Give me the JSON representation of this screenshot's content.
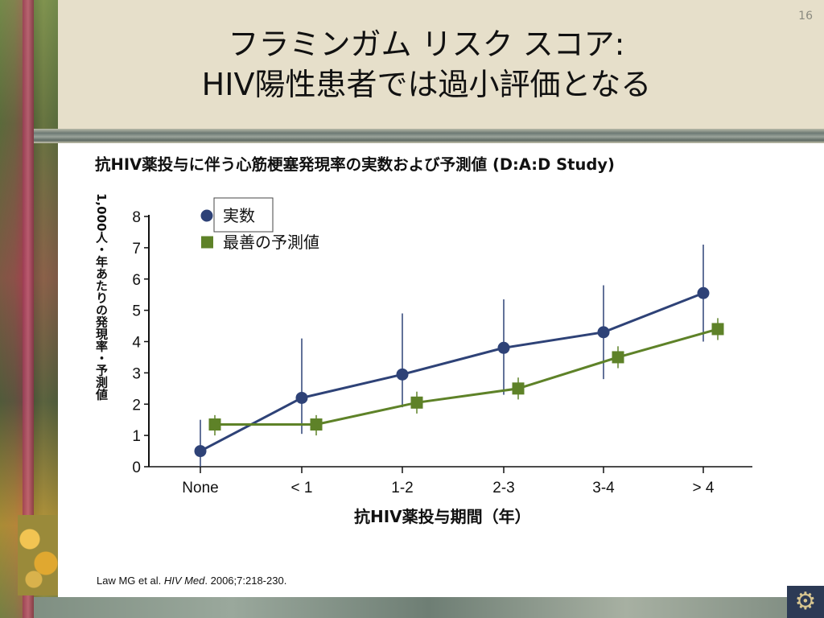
{
  "slide": {
    "number": "16",
    "title_line1": "フラミンガム リスク スコア:",
    "title_line2": "HIV陽性患者では過小評価となる",
    "citation_prefix": "Law MG et al. ",
    "citation_journal": "HIV Med",
    "citation_suffix": ". 2006;7:218-230."
  },
  "chart_data": {
    "type": "line",
    "title": "抗HIV薬投与に伴う心筋梗塞発現率の実数および予測値 (D:A:D Study)",
    "xlabel": "抗HIV薬投与期間（年）",
    "ylabel": "1,000人・年あたりの発現率・予測値",
    "categories": [
      "None",
      "< 1",
      "1-2",
      "2-3",
      "3-4",
      "> 4"
    ],
    "ylim": [
      0,
      8
    ],
    "yticks": [
      "0",
      "1",
      "2",
      "3",
      "4",
      "5",
      "6",
      "7",
      "8"
    ],
    "legend_position": "top-left",
    "series": [
      {
        "name": "実数",
        "marker": "circle",
        "color": "#2e4277",
        "values": [
          0.5,
          2.2,
          2.95,
          3.8,
          4.3,
          5.55
        ],
        "err_low": [
          0.0,
          1.05,
          1.9,
          2.3,
          2.8,
          4.0
        ],
        "err_high": [
          1.5,
          4.1,
          4.9,
          5.35,
          5.8,
          7.1
        ]
      },
      {
        "name": "最善の予測値",
        "marker": "square",
        "color": "#5e8228",
        "values": [
          1.35,
          1.35,
          2.05,
          2.5,
          3.5,
          4.4
        ],
        "err_low": [
          1.0,
          1.0,
          1.7,
          2.15,
          3.15,
          4.05
        ],
        "err_high": [
          1.65,
          1.65,
          2.4,
          2.85,
          3.85,
          4.75
        ]
      }
    ]
  }
}
